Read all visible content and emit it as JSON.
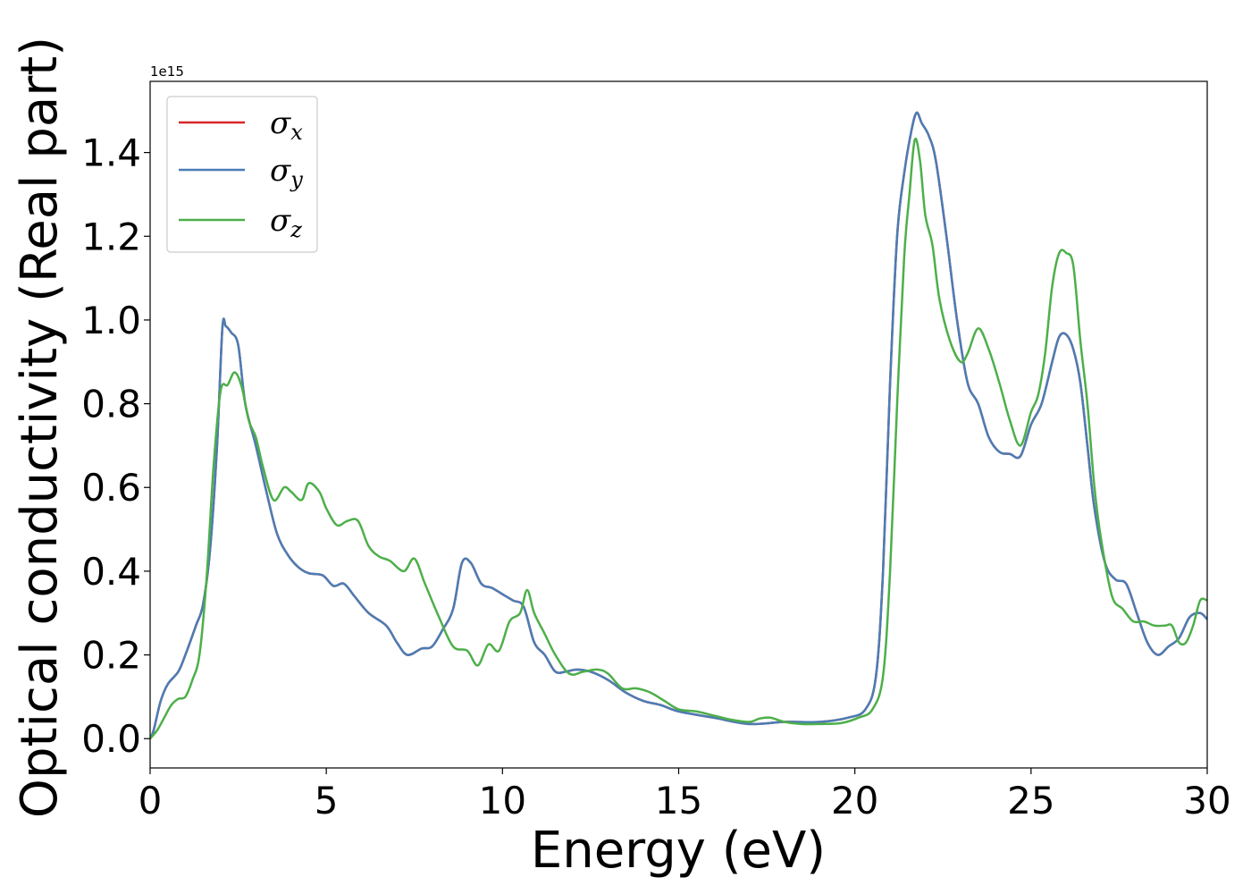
{
  "chart_data": {
    "type": "line",
    "xlabel": "Energy (eV)",
    "ylabel": "Optical conductivity (Real part)",
    "y_offset_label": "1e15",
    "xlim": [
      0,
      30
    ],
    "ylim": [
      -0.07,
      1.57
    ],
    "xticks": [
      0,
      5,
      10,
      15,
      20,
      25,
      30
    ],
    "xtick_labels": [
      "0",
      "5",
      "10",
      "15",
      "20",
      "25",
      "30"
    ],
    "yticks": [
      0.0,
      0.2,
      0.4,
      0.6,
      0.8,
      1.0,
      1.2,
      1.4
    ],
    "ytick_labels": [
      "0.0",
      "0.2",
      "0.4",
      "0.6",
      "0.8",
      "1.0",
      "1.2",
      "1.4"
    ],
    "legend_position": "upper-left",
    "series": [
      {
        "name": "σx",
        "symbol": "σ",
        "subscript": "x",
        "color": "#d62728",
        "x": [
          0,
          0.1,
          0.3,
          0.5,
          0.8,
          1.0,
          1.3,
          1.5,
          1.7,
          1.9,
          2.05,
          2.15,
          2.3,
          2.5,
          2.7,
          3.0,
          3.3,
          3.6,
          3.9,
          4.2,
          4.5,
          4.9,
          5.2,
          5.5,
          5.8,
          6.2,
          6.7,
          7.0,
          7.3,
          7.7,
          8.0,
          8.3,
          8.6,
          8.85,
          9.1,
          9.4,
          9.7,
          10.0,
          10.3,
          10.6,
          10.9,
          11.2,
          11.5,
          11.8,
          12.1,
          12.5,
          13.0,
          13.5,
          14.0,
          14.5,
          15.0,
          16.0,
          17.0,
          18.0,
          19.0,
          19.8,
          20.3,
          20.6,
          20.8,
          21.0,
          21.2,
          21.4,
          21.6,
          21.75,
          21.9,
          22.1,
          22.3,
          22.6,
          22.9,
          23.2,
          23.5,
          23.8,
          24.1,
          24.4,
          24.7,
          25.0,
          25.3,
          25.6,
          25.8,
          26.0,
          26.2,
          26.4,
          26.6,
          26.8,
          27.1,
          27.4,
          27.7,
          28.0,
          28.3,
          28.6,
          28.9,
          29.2,
          29.5,
          29.8,
          30.0
        ],
        "y": [
          0.0,
          0.02,
          0.09,
          0.13,
          0.16,
          0.2,
          0.27,
          0.32,
          0.45,
          0.7,
          0.98,
          0.985,
          0.97,
          0.94,
          0.8,
          0.7,
          0.59,
          0.49,
          0.44,
          0.41,
          0.395,
          0.39,
          0.365,
          0.37,
          0.34,
          0.3,
          0.27,
          0.23,
          0.2,
          0.215,
          0.22,
          0.26,
          0.31,
          0.42,
          0.42,
          0.37,
          0.36,
          0.345,
          0.33,
          0.315,
          0.23,
          0.2,
          0.16,
          0.16,
          0.165,
          0.16,
          0.14,
          0.11,
          0.09,
          0.08,
          0.065,
          0.05,
          0.035,
          0.04,
          0.04,
          0.05,
          0.07,
          0.15,
          0.4,
          0.85,
          1.2,
          1.35,
          1.45,
          1.495,
          1.47,
          1.44,
          1.38,
          1.2,
          1.0,
          0.85,
          0.8,
          0.72,
          0.685,
          0.68,
          0.675,
          0.75,
          0.8,
          0.9,
          0.96,
          0.965,
          0.93,
          0.85,
          0.7,
          0.55,
          0.42,
          0.38,
          0.37,
          0.3,
          0.23,
          0.2,
          0.22,
          0.24,
          0.29,
          0.3,
          0.285
        ]
      },
      {
        "name": "σy",
        "symbol": "σ",
        "subscript": "y",
        "color": "#4a7db5",
        "x": [
          0,
          0.1,
          0.3,
          0.5,
          0.8,
          1.0,
          1.3,
          1.5,
          1.7,
          1.9,
          2.05,
          2.15,
          2.3,
          2.5,
          2.7,
          3.0,
          3.3,
          3.6,
          3.9,
          4.2,
          4.5,
          4.9,
          5.2,
          5.5,
          5.8,
          6.2,
          6.7,
          7.0,
          7.3,
          7.7,
          8.0,
          8.3,
          8.6,
          8.85,
          9.1,
          9.4,
          9.7,
          10.0,
          10.3,
          10.6,
          10.9,
          11.2,
          11.5,
          11.8,
          12.1,
          12.5,
          13.0,
          13.5,
          14.0,
          14.5,
          15.0,
          16.0,
          17.0,
          18.0,
          19.0,
          19.8,
          20.3,
          20.6,
          20.8,
          21.0,
          21.2,
          21.4,
          21.6,
          21.75,
          21.9,
          22.1,
          22.3,
          22.6,
          22.9,
          23.2,
          23.5,
          23.8,
          24.1,
          24.4,
          24.7,
          25.0,
          25.3,
          25.6,
          25.8,
          26.0,
          26.2,
          26.4,
          26.6,
          26.8,
          27.1,
          27.4,
          27.7,
          28.0,
          28.3,
          28.6,
          28.9,
          29.2,
          29.5,
          29.8,
          30.0
        ],
        "y": [
          0.0,
          0.02,
          0.09,
          0.13,
          0.16,
          0.2,
          0.27,
          0.32,
          0.45,
          0.7,
          0.98,
          0.985,
          0.97,
          0.94,
          0.8,
          0.7,
          0.59,
          0.49,
          0.44,
          0.41,
          0.395,
          0.39,
          0.365,
          0.37,
          0.34,
          0.3,
          0.27,
          0.23,
          0.2,
          0.215,
          0.22,
          0.26,
          0.31,
          0.42,
          0.42,
          0.37,
          0.36,
          0.345,
          0.33,
          0.315,
          0.23,
          0.2,
          0.16,
          0.16,
          0.165,
          0.16,
          0.14,
          0.11,
          0.09,
          0.08,
          0.065,
          0.05,
          0.035,
          0.04,
          0.04,
          0.05,
          0.07,
          0.15,
          0.4,
          0.85,
          1.2,
          1.35,
          1.45,
          1.495,
          1.47,
          1.44,
          1.38,
          1.2,
          1.0,
          0.85,
          0.8,
          0.72,
          0.685,
          0.68,
          0.675,
          0.75,
          0.8,
          0.9,
          0.96,
          0.965,
          0.93,
          0.85,
          0.7,
          0.55,
          0.42,
          0.38,
          0.37,
          0.3,
          0.23,
          0.2,
          0.22,
          0.24,
          0.29,
          0.3,
          0.285
        ]
      },
      {
        "name": "σz",
        "symbol": "σ",
        "subscript": "z",
        "color": "#4daf4a",
        "x": [
          0,
          0.2,
          0.4,
          0.6,
          0.8,
          1.0,
          1.2,
          1.4,
          1.6,
          1.8,
          2.0,
          2.2,
          2.4,
          2.6,
          2.8,
          3.0,
          3.2,
          3.5,
          3.8,
          4.0,
          4.3,
          4.5,
          4.8,
          5.0,
          5.3,
          5.6,
          5.9,
          6.2,
          6.5,
          6.8,
          7.2,
          7.5,
          7.8,
          8.2,
          8.6,
          9.0,
          9.3,
          9.6,
          9.9,
          10.2,
          10.5,
          10.7,
          10.9,
          11.2,
          11.5,
          11.9,
          12.3,
          12.7,
          13.0,
          13.4,
          13.8,
          14.2,
          14.6,
          15.0,
          15.5,
          16.0,
          16.5,
          17.0,
          17.3,
          17.6,
          18.0,
          18.5,
          19.0,
          19.6,
          20.1,
          20.5,
          20.8,
          21.0,
          21.2,
          21.4,
          21.55,
          21.7,
          21.85,
          22.0,
          22.2,
          22.4,
          22.7,
          23.0,
          23.2,
          23.5,
          23.8,
          24.1,
          24.4,
          24.7,
          25.0,
          25.2,
          25.4,
          25.6,
          25.8,
          26.0,
          26.2,
          26.4,
          26.6,
          26.8,
          27.0,
          27.3,
          27.6,
          27.9,
          28.2,
          28.5,
          28.8,
          29.0,
          29.2,
          29.4,
          29.6,
          29.8,
          30.0
        ],
        "y": [
          0.0,
          0.02,
          0.05,
          0.08,
          0.095,
          0.1,
          0.14,
          0.2,
          0.38,
          0.65,
          0.83,
          0.845,
          0.875,
          0.84,
          0.76,
          0.72,
          0.65,
          0.57,
          0.6,
          0.59,
          0.57,
          0.61,
          0.59,
          0.55,
          0.51,
          0.52,
          0.52,
          0.46,
          0.435,
          0.425,
          0.4,
          0.43,
          0.37,
          0.29,
          0.22,
          0.21,
          0.175,
          0.225,
          0.21,
          0.28,
          0.3,
          0.355,
          0.3,
          0.25,
          0.2,
          0.155,
          0.16,
          0.165,
          0.155,
          0.12,
          0.12,
          0.11,
          0.09,
          0.07,
          0.065,
          0.055,
          0.045,
          0.04,
          0.048,
          0.05,
          0.04,
          0.035,
          0.035,
          0.037,
          0.05,
          0.07,
          0.15,
          0.4,
          0.8,
          1.15,
          1.3,
          1.43,
          1.38,
          1.25,
          1.18,
          1.05,
          0.95,
          0.9,
          0.92,
          0.98,
          0.93,
          0.85,
          0.76,
          0.7,
          0.78,
          0.82,
          0.92,
          1.08,
          1.16,
          1.16,
          1.13,
          0.95,
          0.8,
          0.6,
          0.47,
          0.34,
          0.31,
          0.28,
          0.28,
          0.27,
          0.27,
          0.27,
          0.23,
          0.23,
          0.27,
          0.33,
          0.33
        ]
      }
    ]
  }
}
